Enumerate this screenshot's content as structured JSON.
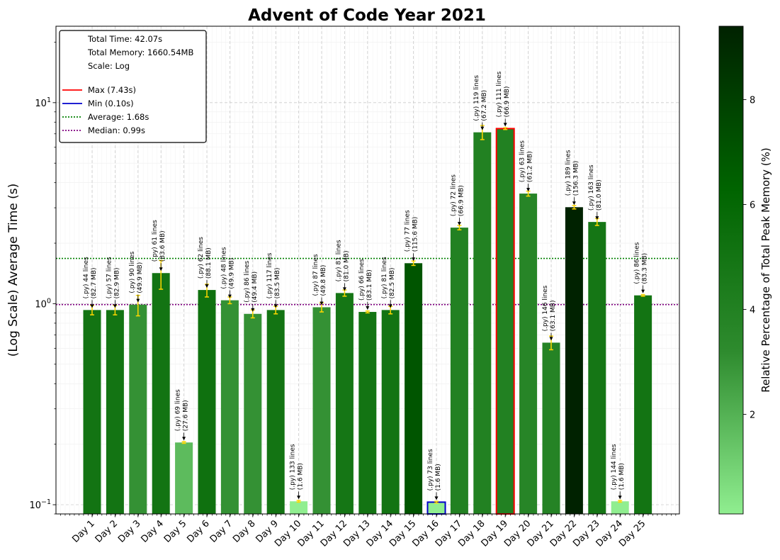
{
  "chart_data": {
    "type": "bar",
    "title": "Advent of Code Year 2021",
    "ylabel": "(Log Scale) Average Time (s)",
    "yscale": "log",
    "ylim": [
      0.09,
      24
    ],
    "yticks": [
      {
        "value": 0.1,
        "base": "10",
        "exp": "−1"
      },
      {
        "value": 1,
        "base": "10",
        "exp": "0"
      },
      {
        "value": 10,
        "base": "10",
        "exp": "1"
      }
    ],
    "grid": true,
    "legend": {
      "placement": "top-left",
      "info": [
        "Total Time: 42.07s",
        "Total Memory: 1660.54MB",
        "Scale: Log"
      ],
      "entries": [
        {
          "label": "Max (7.43s)",
          "color": "#ff0000",
          "style": "solid"
        },
        {
          "label": "Min (0.10s)",
          "color": "#0000cc",
          "style": "solid"
        },
        {
          "label": "Average: 1.68s",
          "color": "#008000",
          "style": "dotted"
        },
        {
          "label": "Median: 0.99s",
          "color": "#800080",
          "style": "dotted"
        }
      ]
    },
    "ref_lines": {
      "average": 1.68,
      "median": 0.99
    },
    "max_index": 18,
    "min_index": 15,
    "categories": [
      "Day 1",
      "Day 2",
      "Day 3",
      "Day 4",
      "Day 5",
      "Day 6",
      "Day 7",
      "Day 8",
      "Day 9",
      "Day 10",
      "Day 11",
      "Day 12",
      "Day 13",
      "Day 14",
      "Day 15",
      "Day 16",
      "Day 17",
      "Day 18",
      "Day 19",
      "Day 20",
      "Day 21",
      "Day 22",
      "Day 23",
      "Day 24",
      "Day 25"
    ],
    "values": [
      0.93,
      0.93,
      0.99,
      1.42,
      0.204,
      1.17,
      1.04,
      0.89,
      0.93,
      0.104,
      0.96,
      1.13,
      0.91,
      0.93,
      1.59,
      0.103,
      2.39,
      7.12,
      7.43,
      3.53,
      0.64,
      3.02,
      2.55,
      0.104,
      1.1
    ],
    "error_low": [
      0.88,
      0.88,
      0.87,
      1.18,
      0.202,
      1.08,
      1.0,
      0.85,
      0.89,
      0.103,
      0.91,
      1.09,
      0.9,
      0.89,
      1.55,
      0.102,
      2.33,
      6.55,
      7.35,
      3.43,
      0.59,
      2.96,
      2.45,
      0.103,
      1.09
    ],
    "error_high": [
      0.98,
      0.98,
      1.1,
      1.64,
      0.206,
      1.25,
      1.08,
      0.93,
      0.97,
      0.105,
      1.01,
      1.17,
      0.92,
      0.97,
      1.63,
      0.104,
      2.45,
      7.7,
      7.51,
      3.63,
      0.69,
      3.08,
      2.65,
      0.105,
      1.11
    ],
    "memory_percent": [
      5.0,
      5.0,
      3.0,
      5.0,
      1.7,
      5.3,
      3.0,
      3.0,
      5.0,
      0.1,
      3.0,
      4.9,
      5.0,
      5.0,
      7.0,
      0.1,
      4.0,
      4.0,
      4.0,
      3.7,
      3.8,
      9.4,
      4.9,
      0.1,
      5.0
    ],
    "annotations": [
      {
        "line1": "(.py) 44 lines",
        "line2": "(82.7 MB)"
      },
      {
        "line1": "(.py) 57 lines",
        "line2": "(82.9 MB)"
      },
      {
        "line1": "(.py) 90 lines",
        "line2": "(49.9 MB)"
      },
      {
        "line1": "(.py) 61 lines",
        "line2": "(83.6 MB)"
      },
      {
        "line1": "(.py) 69 lines",
        "line2": "(27.6 MB)"
      },
      {
        "line1": "(.py) 62 lines",
        "line2": "(88.1 MB)"
      },
      {
        "line1": "(.py) 48 lines",
        "line2": "(49.9 MB)"
      },
      {
        "line1": "(.py) 86 lines",
        "line2": "(49.4 MB)"
      },
      {
        "line1": "(.py) 117 lines",
        "line2": "(83.5 MB)"
      },
      {
        "line1": "(.py) 133 lines",
        "line2": "(1.6 MB)"
      },
      {
        "line1": "(.py) 87 lines",
        "line2": "(49.8 MB)"
      },
      {
        "line1": "(.py) 81 lines",
        "line2": "(81.0 MB)"
      },
      {
        "line1": "(.py) 66 lines",
        "line2": "(83.1 MB)"
      },
      {
        "line1": "(.py) 81 lines",
        "line2": "(82.5 MB)"
      },
      {
        "line1": "(.py) 77 lines",
        "line2": "(115.6 MB)"
      },
      {
        "line1": "(.py) 73 lines",
        "line2": "(1.6 MB)"
      },
      {
        "line1": "(.py) 72 lines",
        "line2": "(66.9 MB)"
      },
      {
        "line1": "(.py) 119 lines",
        "line2": "(67.2 MB)"
      },
      {
        "line1": "(.py) 111 lines",
        "line2": "(66.9 MB)"
      },
      {
        "line1": "(.py) 63 lines",
        "line2": "(61.2 MB)"
      },
      {
        "line1": "(.py) 146 lines",
        "line2": "(63.1 MB)"
      },
      {
        "line1": "(.py) 189 lines",
        "line2": "(156.3 MB)"
      },
      {
        "line1": "(.py) 163 lines",
        "line2": "(81.0 MB)"
      },
      {
        "line1": "(.py) 144 lines",
        "line2": "(1.6 MB)"
      },
      {
        "line1": "(.py) 86 lines",
        "line2": "(83.3 MB)"
      }
    ],
    "colorbar": {
      "label": "Relative Percentage of Total Peak Memory (%)",
      "min": 0.1,
      "max": 9.4,
      "ticks": [
        2,
        4,
        6,
        8
      ],
      "colors": [
        "#90ee90",
        "#2e8b2e",
        "#006400",
        "#002200"
      ]
    },
    "colors": {
      "error_bar": "#ffd700",
      "grid": "#cccccc",
      "max_edge": "#ff0000",
      "min_edge": "#0000cc"
    }
  }
}
